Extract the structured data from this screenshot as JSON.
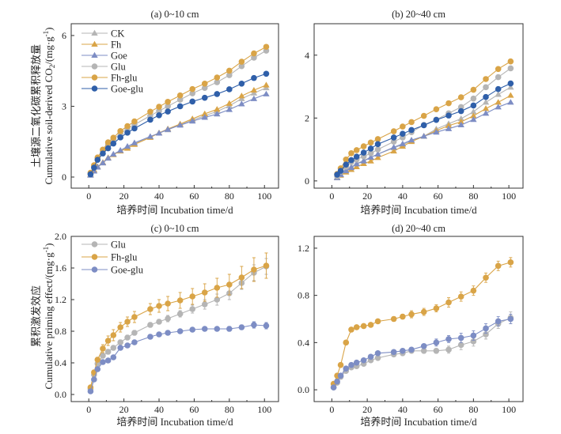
{
  "colors": {
    "CK": "#b5b5b5",
    "Fh": "#d9a447",
    "Goe": "#7d8dc4",
    "Glu": "#b5b5b5",
    "Fh-glu": "#d9a447",
    "Goe-glu": "#2f5fa9",
    "Goe-glu-pe": "#7d8dc4"
  },
  "chart_data": [
    {
      "id": "a",
      "type": "line",
      "title": "(a) 0~10 cm",
      "xlabel": "培养时间 Incubation time/d",
      "ylabel_cn": "土壤源二氧化碳累积释放量",
      "ylabel_en": "Cumulative soil-derived CO",
      "ylabel_sub": "2",
      "ylabel_unit": "/(mg·g",
      "xlim": [
        -10,
        108
      ],
      "ylim": [
        -0.47,
        6.5
      ],
      "xticks": [
        0,
        20,
        40,
        60,
        80,
        100
      ],
      "yticks": [
        0,
        3,
        6
      ],
      "ytick_labels": [
        "0",
        "3",
        "6"
      ],
      "legend": "top-left",
      "x": [
        1,
        3,
        5,
        8,
        11,
        14,
        18,
        22,
        26,
        35,
        40,
        45,
        52,
        59,
        66,
        73,
        80,
        87,
        94,
        101
      ],
      "series": [
        {
          "name": "CK",
          "marker": "triangle",
          "color_key": "CK",
          "values": [
            0.08,
            0.28,
            0.45,
            0.6,
            0.8,
            0.95,
            1.12,
            1.27,
            1.42,
            1.7,
            1.87,
            2.0,
            2.22,
            2.42,
            2.6,
            2.78,
            3.02,
            3.32,
            3.56,
            3.78
          ]
        },
        {
          "name": "Fh",
          "marker": "triangle",
          "color_key": "Fh",
          "values": [
            0.1,
            0.3,
            0.42,
            0.62,
            0.82,
            0.95,
            1.1,
            1.22,
            1.38,
            1.68,
            1.87,
            2.04,
            2.25,
            2.47,
            2.68,
            2.87,
            3.12,
            3.44,
            3.68,
            3.9
          ]
        },
        {
          "name": "Goe",
          "marker": "triangle",
          "color_key": "Goe",
          "values": [
            0.08,
            0.25,
            0.42,
            0.6,
            0.8,
            0.97,
            1.13,
            1.3,
            1.45,
            1.72,
            1.86,
            2.02,
            2.2,
            2.37,
            2.53,
            2.67,
            2.86,
            3.1,
            3.32,
            3.52
          ]
        },
        {
          "name": "Glu",
          "marker": "circle",
          "color_key": "Glu",
          "values": [
            0.15,
            0.45,
            0.78,
            1.1,
            1.38,
            1.6,
            1.85,
            2.05,
            2.22,
            2.6,
            2.8,
            3.0,
            3.28,
            3.55,
            3.78,
            4.02,
            4.32,
            4.7,
            5.06,
            5.36
          ]
        },
        {
          "name": "Fh-glu",
          "marker": "circle",
          "color_key": "Fh-glu",
          "values": [
            0.18,
            0.5,
            0.83,
            1.16,
            1.47,
            1.67,
            1.95,
            2.16,
            2.36,
            2.77,
            2.98,
            3.19,
            3.46,
            3.73,
            3.96,
            4.22,
            4.51,
            4.89,
            5.24,
            5.52
          ]
        },
        {
          "name": "Goe-glu",
          "marker": "circle",
          "color_key": "Goe-glu",
          "values": [
            0.12,
            0.4,
            0.73,
            1.0,
            1.22,
            1.42,
            1.68,
            1.88,
            2.06,
            2.43,
            2.62,
            2.78,
            3.0,
            3.2,
            3.36,
            3.52,
            3.72,
            3.96,
            4.2,
            4.38
          ]
        }
      ]
    },
    {
      "id": "b",
      "type": "line",
      "title": "(b) 20~40 cm",
      "xlabel": "培养时间 Incubation time/d",
      "xlim": [
        -10,
        108
      ],
      "ylim": [
        -0.23,
        5.0
      ],
      "xticks": [
        0,
        20,
        40,
        60,
        80,
        100
      ],
      "yticks": [
        0,
        2,
        4
      ],
      "ytick_labels": [
        "0",
        "2",
        "4"
      ],
      "x": [
        3,
        5,
        8,
        11,
        14,
        18,
        22,
        26,
        35,
        40,
        45,
        52,
        59,
        66,
        73,
        80,
        87,
        94,
        101
      ],
      "series": [
        {
          "name": "CK",
          "marker": "triangle",
          "color_key": "CK",
          "values": [
            0.12,
            0.2,
            0.35,
            0.45,
            0.55,
            0.65,
            0.75,
            0.85,
            1.05,
            1.15,
            1.28,
            1.42,
            1.65,
            1.82,
            1.98,
            2.2,
            2.5,
            2.75,
            2.98
          ]
        },
        {
          "name": "Fh",
          "marker": "triangle",
          "color_key": "Fh",
          "values": [
            0.1,
            0.18,
            0.28,
            0.36,
            0.45,
            0.55,
            0.63,
            0.74,
            0.95,
            1.1,
            1.25,
            1.42,
            1.6,
            1.76,
            1.88,
            2.07,
            2.3,
            2.5,
            2.72
          ]
        },
        {
          "name": "Goe",
          "marker": "triangle",
          "color_key": "Goe",
          "values": [
            0.1,
            0.2,
            0.32,
            0.42,
            0.54,
            0.63,
            0.75,
            0.85,
            1.07,
            1.18,
            1.3,
            1.42,
            1.55,
            1.66,
            1.78,
            1.95,
            2.15,
            2.35,
            2.5
          ]
        },
        {
          "name": "Glu",
          "marker": "circle",
          "color_key": "Glu",
          "values": [
            0.15,
            0.3,
            0.45,
            0.6,
            0.68,
            0.78,
            0.88,
            1.0,
            1.25,
            1.38,
            1.55,
            1.78,
            1.95,
            2.15,
            2.35,
            2.62,
            2.98,
            3.3,
            3.58
          ]
        },
        {
          "name": "Fh-glu",
          "marker": "circle",
          "color_key": "Fh-glu",
          "values": [
            0.22,
            0.4,
            0.68,
            0.88,
            0.98,
            1.1,
            1.22,
            1.33,
            1.58,
            1.73,
            1.87,
            2.07,
            2.28,
            2.47,
            2.66,
            2.9,
            3.24,
            3.56,
            3.8
          ]
        },
        {
          "name": "Goe-glu",
          "marker": "circle",
          "color_key": "Goe-glu",
          "values": [
            0.2,
            0.32,
            0.52,
            0.66,
            0.77,
            0.9,
            1.03,
            1.17,
            1.38,
            1.5,
            1.62,
            1.77,
            1.94,
            2.08,
            2.22,
            2.4,
            2.67,
            2.92,
            3.1
          ]
        }
      ]
    },
    {
      "id": "c",
      "type": "line",
      "title": "(c) 0~10 cm",
      "xlabel": "培养时间 Incubation time/d",
      "ylabel_cn": "累积激发效应",
      "ylabel_en": "Cumulative priming effect/(mg·g",
      "xlim": [
        -10,
        108
      ],
      "ylim": [
        -0.09,
        2.0
      ],
      "xticks": [
        0,
        20,
        40,
        60,
        80,
        100
      ],
      "yticks": [
        0,
        0.4,
        0.8,
        1.2,
        1.6,
        2.0
      ],
      "ytick_labels": [
        "0.0",
        "0.4",
        "0.8",
        "1.2",
        "1.6",
        "2.0"
      ],
      "legend": "top-left",
      "x": [
        1,
        3,
        5,
        8,
        11,
        14,
        18,
        22,
        26,
        35,
        40,
        45,
        52,
        59,
        66,
        73,
        80,
        87,
        94,
        101
      ],
      "series": [
        {
          "name": "Glu",
          "marker": "circle",
          "color_key": "Glu",
          "values": [
            0.07,
            0.25,
            0.39,
            0.49,
            0.54,
            0.59,
            0.66,
            0.72,
            0.78,
            0.88,
            0.92,
            0.96,
            1.02,
            1.08,
            1.14,
            1.2,
            1.28,
            1.41,
            1.54,
            1.62
          ],
          "err": [
            0.01,
            0.02,
            0.02,
            0.03,
            0.03,
            0.03,
            0.03,
            0.03,
            0.03,
            0.03,
            0.03,
            0.04,
            0.04,
            0.05,
            0.06,
            0.07,
            0.08,
            0.08,
            0.1,
            0.1
          ]
        },
        {
          "name": "Fh-glu",
          "marker": "circle",
          "color_key": "Fh-glu",
          "values": [
            0.09,
            0.28,
            0.44,
            0.58,
            0.68,
            0.75,
            0.85,
            0.92,
            0.98,
            1.08,
            1.12,
            1.15,
            1.19,
            1.24,
            1.29,
            1.35,
            1.39,
            1.48,
            1.58,
            1.63
          ],
          "err": [
            0.01,
            0.02,
            0.03,
            0.05,
            0.06,
            0.07,
            0.06,
            0.06,
            0.07,
            0.07,
            0.08,
            0.09,
            0.1,
            0.1,
            0.11,
            0.12,
            0.13,
            0.14,
            0.15,
            0.16
          ]
        },
        {
          "name": "Goe-glu",
          "marker": "circle",
          "color_key": "Goe-glu-pe",
          "values": [
            0.04,
            0.19,
            0.32,
            0.41,
            0.43,
            0.47,
            0.59,
            0.62,
            0.66,
            0.73,
            0.76,
            0.78,
            0.8,
            0.82,
            0.83,
            0.83,
            0.83,
            0.85,
            0.88,
            0.87
          ],
          "err": [
            0.01,
            0.01,
            0.01,
            0.01,
            0.01,
            0.01,
            0.01,
            0.01,
            0.01,
            0.01,
            0.01,
            0.01,
            0.01,
            0.01,
            0.02,
            0.02,
            0.03,
            0.03,
            0.04,
            0.04
          ]
        }
      ]
    },
    {
      "id": "d",
      "type": "line",
      "title": "(d) 20~40 cm",
      "xlabel": "培养时间 Incubation time/d",
      "xlim": [
        -10,
        108
      ],
      "ylim": [
        -0.1,
        1.3
      ],
      "xticks": [
        0,
        20,
        40,
        60,
        80,
        100
      ],
      "yticks": [
        0,
        0.4,
        0.8,
        1.2
      ],
      "ytick_labels": [
        "0.0",
        "0.4",
        "0.8",
        "1.2"
      ],
      "x": [
        1,
        3,
        5,
        8,
        11,
        14,
        18,
        22,
        26,
        35,
        40,
        45,
        52,
        59,
        66,
        73,
        80,
        87,
        94,
        101
      ],
      "series": [
        {
          "name": "Glu",
          "marker": "circle",
          "color_key": "Glu",
          "values": [
            0.02,
            0.06,
            0.11,
            0.16,
            0.19,
            0.2,
            0.22,
            0.25,
            0.27,
            0.3,
            0.31,
            0.33,
            0.33,
            0.33,
            0.34,
            0.38,
            0.41,
            0.47,
            0.56,
            0.61
          ],
          "err": [
            0.01,
            0.01,
            0.01,
            0.01,
            0.01,
            0.01,
            0.01,
            0.01,
            0.01,
            0.01,
            0.01,
            0.01,
            0.02,
            0.02,
            0.03,
            0.04,
            0.04,
            0.04,
            0.04,
            0.05
          ]
        },
        {
          "name": "Fh-glu",
          "marker": "circle",
          "color_key": "Fh-glu",
          "values": [
            0.05,
            0.12,
            0.21,
            0.4,
            0.51,
            0.53,
            0.54,
            0.55,
            0.58,
            0.6,
            0.62,
            0.64,
            0.66,
            0.69,
            0.74,
            0.79,
            0.84,
            0.95,
            1.05,
            1.08
          ],
          "err": [
            0.01,
            0.01,
            0.01,
            0.01,
            0.01,
            0.01,
            0.01,
            0.01,
            0.01,
            0.02,
            0.02,
            0.03,
            0.03,
            0.03,
            0.04,
            0.04,
            0.04,
            0.04,
            0.04,
            0.04
          ]
        },
        {
          "name": "Goe-glu",
          "marker": "circle",
          "color_key": "Goe-glu-pe",
          "values": [
            0.02,
            0.07,
            0.12,
            0.18,
            0.21,
            0.23,
            0.25,
            0.28,
            0.31,
            0.32,
            0.33,
            0.34,
            0.37,
            0.4,
            0.43,
            0.44,
            0.46,
            0.52,
            0.58,
            0.6
          ],
          "err": [
            0.01,
            0.01,
            0.01,
            0.01,
            0.01,
            0.01,
            0.01,
            0.01,
            0.01,
            0.01,
            0.01,
            0.01,
            0.01,
            0.03,
            0.03,
            0.04,
            0.04,
            0.04,
            0.04,
            0.04
          ]
        }
      ]
    }
  ]
}
